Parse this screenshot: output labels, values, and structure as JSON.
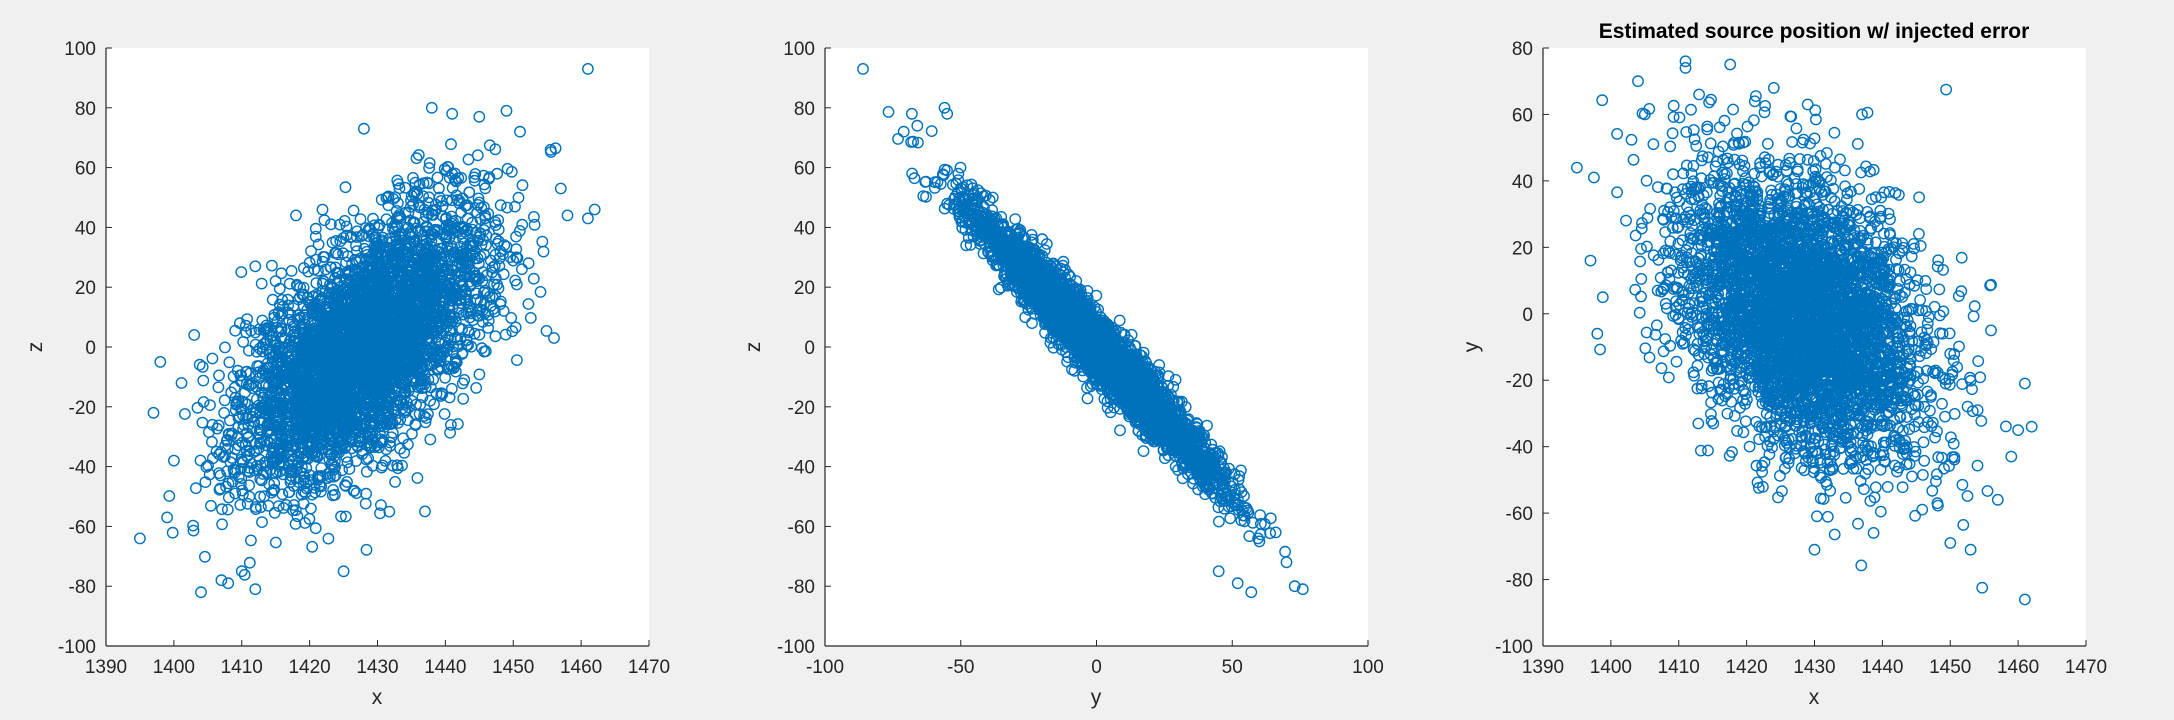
{
  "figure": {
    "background": "#f0f0f0",
    "axes_background": "#ffffff",
    "axis_color": "#262626",
    "marker_color": "#0072bd"
  },
  "chart_data": [
    {
      "type": "scatter",
      "title": "",
      "xlabel": "x",
      "ylabel": "z",
      "xlim": [
        1390,
        1470
      ],
      "ylim": [
        -100,
        100
      ],
      "xticks": [
        1390,
        1400,
        1410,
        1420,
        1430,
        1440,
        1450,
        1460,
        1470
      ],
      "yticks": [
        -100,
        -80,
        -60,
        -40,
        -20,
        0,
        20,
        40,
        60,
        80,
        100
      ],
      "marker": "o",
      "grid": false,
      "point_count_estimate": 10000,
      "distribution": {
        "x_mean": 1428,
        "x_sd": 9,
        "y_mean": 0,
        "y_sd": 22,
        "correlation": 0.6,
        "x_extent": [
          1395,
          1462
        ],
        "y_extent": [
          -82,
          93
        ]
      },
      "series": [
        {
          "x": [
            1395,
            1397,
            1398,
            1399,
            1400,
            1403,
            1404,
            1407,
            1408,
            1412,
            1412,
            1418,
            1425,
            1428,
            1437,
            1438,
            1441,
            1445,
            1449,
            1451,
            1456,
            1457,
            1458,
            1461,
            1461,
            1462
          ],
          "y": [
            -64,
            -22,
            -5,
            -57,
            -38,
            4,
            -82,
            -78,
            -79,
            -81,
            27,
            44,
            -75,
            73,
            -55,
            80,
            78,
            77,
            79,
            72,
            3,
            53,
            44,
            93,
            43,
            46
          ]
        }
      ]
    },
    {
      "type": "scatter",
      "title": "",
      "xlabel": "y",
      "ylabel": "z",
      "xlim": [
        -100,
        100
      ],
      "ylim": [
        -100,
        100
      ],
      "xticks": [
        -100,
        -50,
        0,
        50,
        100
      ],
      "yticks": [
        -100,
        -80,
        -60,
        -40,
        -20,
        0,
        20,
        40,
        60,
        80,
        100
      ],
      "marker": "o",
      "grid": false,
      "point_count_estimate": 10000,
      "distribution": {
        "x_mean": 0,
        "x_sd": 22,
        "y_mean": 0,
        "y_sd": 22,
        "correlation": -0.97,
        "x_extent": [
          -86,
          76
        ],
        "y_extent": [
          -82,
          93
        ]
      },
      "series": [
        {
          "x": [
            -86,
            -71,
            -68,
            -66,
            -56,
            -55,
            -48,
            45,
            52,
            57,
            60,
            66,
            70,
            73,
            76
          ],
          "y": [
            93,
            72,
            78,
            74,
            80,
            78,
            34,
            -75,
            -79,
            -82,
            -65,
            -62,
            -72,
            -80,
            -81
          ]
        }
      ]
    },
    {
      "type": "scatter",
      "title": "Estimated source position w/ injected error",
      "xlabel": "x",
      "ylabel": "y",
      "xlim": [
        1390,
        1470
      ],
      "ylim": [
        -100,
        80
      ],
      "xticks": [
        1390,
        1400,
        1410,
        1420,
        1430,
        1440,
        1450,
        1460,
        1470
      ],
      "yticks": [
        -100,
        -80,
        -60,
        -40,
        -20,
        0,
        20,
        40,
        60,
        80
      ],
      "marker": "o",
      "grid": false,
      "point_count_estimate": 10000,
      "distribution": {
        "x_mean": 1428,
        "x_sd": 9,
        "y_mean": 0,
        "y_sd": 22,
        "correlation": -0.4,
        "x_extent": [
          1395,
          1462
        ],
        "y_extent": [
          -86,
          76
        ]
      },
      "series": [
        {
          "x": [
            1395,
            1397,
            1398,
            1404,
            1405,
            1411,
            1411,
            1413,
            1424,
            1429,
            1430,
            1437,
            1450,
            1453,
            1456,
            1457,
            1459,
            1460,
            1461,
            1461,
            1462
          ],
          "y": [
            44,
            16,
            -6,
            70,
            60,
            76,
            74,
            66,
            68,
            63,
            -71,
            60,
            -69,
            -71,
            -5,
            -56,
            -43,
            -35,
            -86,
            -21,
            -34
          ]
        }
      ]
    }
  ]
}
